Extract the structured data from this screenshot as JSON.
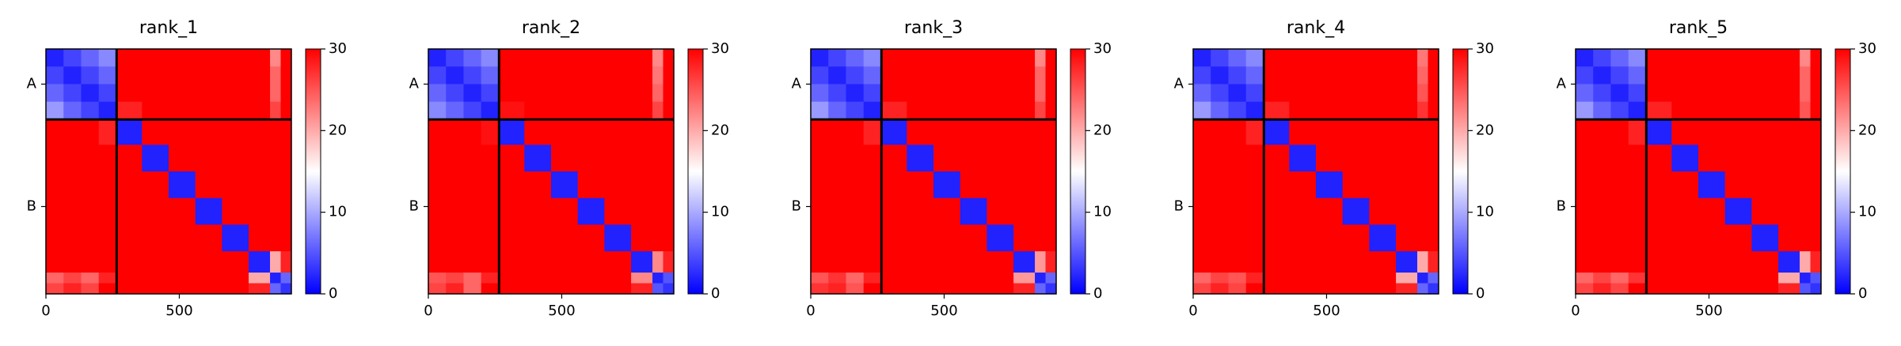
{
  "chart_data": [
    {
      "type": "heatmap",
      "title": "rank_1",
      "colormap": "bwr",
      "clim": [
        0,
        30
      ],
      "cticks": [
        0,
        10,
        20,
        30
      ],
      "bins": [
        0,
        66,
        132,
        198,
        265,
        360,
        460,
        560,
        660,
        760,
        840,
        880,
        920
      ],
      "xlim": [
        0,
        920
      ],
      "ylim": [
        920,
        0
      ],
      "xticks": [
        0,
        500
      ],
      "yticks": [
        {
          "value": 132,
          "label": "A"
        },
        {
          "value": 592,
          "label": "B"
        }
      ],
      "boundaries": [
        265
      ],
      "values": [
        [
          2,
          4,
          6,
          8,
          30,
          30,
          30,
          30,
          30,
          30,
          22,
          30
        ],
        [
          4,
          2,
          4,
          6,
          30,
          30,
          30,
          30,
          30,
          30,
          24,
          30
        ],
        [
          6,
          4,
          2,
          4,
          30,
          30,
          30,
          30,
          30,
          30,
          24,
          30
        ],
        [
          9,
          6,
          4,
          2,
          28,
          30,
          30,
          30,
          30,
          30,
          26,
          30
        ],
        [
          30,
          30,
          30,
          28,
          2,
          30,
          30,
          30,
          30,
          30,
          30,
          30
        ],
        [
          30,
          30,
          30,
          30,
          30,
          2,
          30,
          30,
          30,
          30,
          30,
          30
        ],
        [
          30,
          30,
          30,
          30,
          30,
          30,
          2,
          30,
          30,
          30,
          30,
          30
        ],
        [
          30,
          30,
          30,
          30,
          30,
          30,
          30,
          2,
          30,
          30,
          30,
          30
        ],
        [
          30,
          30,
          30,
          30,
          30,
          30,
          30,
          30,
          2,
          30,
          30,
          30
        ],
        [
          30,
          30,
          30,
          30,
          30,
          30,
          30,
          30,
          30,
          2,
          20,
          28
        ],
        [
          24,
          26,
          24,
          28,
          30,
          30,
          30,
          30,
          30,
          20,
          2,
          6
        ],
        [
          26,
          28,
          26,
          30,
          30,
          30,
          30,
          30,
          30,
          28,
          6,
          3
        ]
      ]
    },
    {
      "type": "heatmap",
      "title": "rank_2",
      "colormap": "bwr",
      "clim": [
        0,
        30
      ],
      "cticks": [
        0,
        10,
        20,
        30
      ],
      "bins": [
        0,
        66,
        132,
        198,
        265,
        360,
        460,
        560,
        660,
        760,
        840,
        880,
        920
      ],
      "xlim": [
        0,
        920
      ],
      "ylim": [
        920,
        0
      ],
      "xticks": [
        0,
        500
      ],
      "yticks": [
        {
          "value": 132,
          "label": "A"
        },
        {
          "value": 592,
          "label": "B"
        }
      ],
      "boundaries": [
        265
      ],
      "values": [
        [
          2,
          4,
          6,
          8,
          30,
          30,
          30,
          30,
          30,
          30,
          22,
          30
        ],
        [
          4,
          2,
          4,
          6,
          30,
          30,
          30,
          30,
          30,
          30,
          23,
          30
        ],
        [
          6,
          4,
          2,
          4,
          30,
          30,
          30,
          30,
          30,
          30,
          24,
          30
        ],
        [
          8,
          6,
          4,
          2,
          29,
          30,
          30,
          30,
          30,
          30,
          26,
          30
        ],
        [
          30,
          30,
          30,
          29,
          2,
          30,
          30,
          30,
          30,
          30,
          30,
          30
        ],
        [
          30,
          30,
          30,
          30,
          30,
          2,
          30,
          30,
          30,
          30,
          30,
          30
        ],
        [
          30,
          30,
          30,
          30,
          30,
          30,
          2,
          30,
          30,
          30,
          30,
          30
        ],
        [
          30,
          30,
          30,
          30,
          30,
          30,
          30,
          2,
          30,
          30,
          30,
          30
        ],
        [
          30,
          30,
          30,
          30,
          30,
          30,
          30,
          30,
          2,
          30,
          30,
          30
        ],
        [
          30,
          30,
          30,
          30,
          30,
          30,
          30,
          30,
          30,
          2,
          22,
          28
        ],
        [
          25,
          26,
          24,
          28,
          30,
          30,
          30,
          30,
          30,
          22,
          2,
          5
        ],
        [
          26,
          28,
          24,
          30,
          30,
          30,
          30,
          30,
          30,
          28,
          5,
          3
        ]
      ]
    },
    {
      "type": "heatmap",
      "title": "rank_3",
      "colormap": "bwr",
      "clim": [
        0,
        30
      ],
      "cticks": [
        0,
        10,
        20,
        30
      ],
      "bins": [
        0,
        66,
        132,
        198,
        265,
        360,
        460,
        560,
        660,
        760,
        840,
        880,
        920
      ],
      "xlim": [
        0,
        920
      ],
      "ylim": [
        920,
        0
      ],
      "xticks": [
        0,
        500
      ],
      "yticks": [
        {
          "value": 132,
          "label": "A"
        },
        {
          "value": 592,
          "label": "B"
        }
      ],
      "boundaries": [
        265
      ],
      "values": [
        [
          2,
          4,
          6,
          8,
          30,
          30,
          30,
          30,
          30,
          30,
          22,
          30
        ],
        [
          4,
          2,
          4,
          6,
          30,
          30,
          30,
          30,
          30,
          30,
          24,
          30
        ],
        [
          6,
          4,
          2,
          4,
          30,
          30,
          30,
          30,
          30,
          30,
          24,
          30
        ],
        [
          9,
          6,
          4,
          2,
          28,
          30,
          30,
          30,
          30,
          30,
          26,
          30
        ],
        [
          30,
          30,
          30,
          28,
          2,
          30,
          30,
          30,
          30,
          30,
          30,
          30
        ],
        [
          30,
          30,
          30,
          30,
          30,
          2,
          30,
          30,
          30,
          30,
          30,
          30
        ],
        [
          30,
          30,
          30,
          30,
          30,
          30,
          2,
          30,
          30,
          30,
          30,
          30
        ],
        [
          30,
          30,
          30,
          30,
          30,
          30,
          30,
          2,
          30,
          30,
          30,
          30
        ],
        [
          30,
          30,
          30,
          30,
          30,
          30,
          30,
          30,
          2,
          30,
          30,
          30
        ],
        [
          30,
          30,
          30,
          30,
          30,
          30,
          30,
          30,
          30,
          2,
          21,
          28
        ],
        [
          25,
          27,
          24,
          28,
          30,
          30,
          30,
          30,
          30,
          21,
          2,
          6
        ],
        [
          27,
          28,
          25,
          30,
          30,
          30,
          30,
          30,
          30,
          28,
          6,
          3
        ]
      ]
    },
    {
      "type": "heatmap",
      "title": "rank_4",
      "colormap": "bwr",
      "clim": [
        0,
        30
      ],
      "cticks": [
        0,
        10,
        20,
        30
      ],
      "bins": [
        0,
        66,
        132,
        198,
        265,
        360,
        460,
        560,
        660,
        760,
        840,
        880,
        920
      ],
      "xlim": [
        0,
        920
      ],
      "ylim": [
        920,
        0
      ],
      "xticks": [
        0,
        500
      ],
      "yticks": [
        {
          "value": 132,
          "label": "A"
        },
        {
          "value": 592,
          "label": "B"
        }
      ],
      "boundaries": [
        265
      ],
      "values": [
        [
          2,
          4,
          6,
          8,
          30,
          30,
          30,
          30,
          30,
          30,
          23,
          30
        ],
        [
          4,
          2,
          4,
          6,
          30,
          30,
          30,
          30,
          30,
          30,
          24,
          30
        ],
        [
          6,
          4,
          2,
          4,
          30,
          30,
          30,
          30,
          30,
          30,
          25,
          30
        ],
        [
          9,
          6,
          4,
          2,
          28,
          30,
          30,
          30,
          30,
          30,
          27,
          30
        ],
        [
          30,
          30,
          30,
          28,
          2,
          30,
          30,
          30,
          30,
          30,
          30,
          30
        ],
        [
          30,
          30,
          30,
          30,
          30,
          2,
          30,
          30,
          30,
          30,
          30,
          30
        ],
        [
          30,
          30,
          30,
          30,
          30,
          30,
          2,
          30,
          30,
          30,
          30,
          30
        ],
        [
          30,
          30,
          30,
          30,
          30,
          30,
          30,
          2,
          30,
          30,
          30,
          30
        ],
        [
          30,
          30,
          30,
          30,
          30,
          30,
          30,
          30,
          2,
          30,
          30,
          30
        ],
        [
          30,
          30,
          30,
          30,
          30,
          30,
          30,
          30,
          30,
          2,
          20,
          28
        ],
        [
          24,
          26,
          25,
          28,
          30,
          30,
          30,
          30,
          30,
          20,
          2,
          6
        ],
        [
          26,
          28,
          26,
          30,
          30,
          30,
          30,
          30,
          30,
          28,
          6,
          3
        ]
      ]
    },
    {
      "type": "heatmap",
      "title": "rank_5",
      "colormap": "bwr",
      "clim": [
        0,
        30
      ],
      "cticks": [
        0,
        10,
        20,
        30
      ],
      "bins": [
        0,
        66,
        132,
        198,
        265,
        360,
        460,
        560,
        660,
        760,
        840,
        880,
        920
      ],
      "xlim": [
        0,
        920
      ],
      "ylim": [
        920,
        0
      ],
      "xticks": [
        0,
        500
      ],
      "yticks": [
        {
          "value": 132,
          "label": "A"
        },
        {
          "value": 592,
          "label": "B"
        }
      ],
      "boundaries": [
        265
      ],
      "values": [
        [
          2,
          4,
          6,
          8,
          30,
          30,
          30,
          30,
          30,
          30,
          22,
          30
        ],
        [
          4,
          2,
          4,
          6,
          30,
          30,
          30,
          30,
          30,
          30,
          24,
          30
        ],
        [
          6,
          4,
          2,
          4,
          30,
          30,
          30,
          30,
          30,
          30,
          24,
          30
        ],
        [
          9,
          6,
          4,
          2,
          28,
          30,
          30,
          30,
          30,
          30,
          25,
          30
        ],
        [
          30,
          30,
          30,
          28,
          2,
          30,
          30,
          30,
          30,
          30,
          30,
          30
        ],
        [
          30,
          30,
          30,
          30,
          30,
          2,
          30,
          30,
          30,
          30,
          30,
          30
        ],
        [
          30,
          30,
          30,
          30,
          30,
          30,
          2,
          30,
          30,
          30,
          30,
          30
        ],
        [
          30,
          30,
          30,
          30,
          30,
          30,
          30,
          2,
          30,
          30,
          30,
          30
        ],
        [
          30,
          30,
          30,
          30,
          30,
          30,
          30,
          30,
          2,
          30,
          30,
          30
        ],
        [
          30,
          30,
          30,
          30,
          30,
          30,
          30,
          30,
          30,
          2,
          20,
          28
        ],
        [
          24,
          26,
          24,
          27,
          30,
          30,
          30,
          30,
          30,
          20,
          2,
          5
        ],
        [
          26,
          28,
          26,
          30,
          30,
          30,
          30,
          30,
          30,
          28,
          5,
          3
        ]
      ]
    }
  ]
}
